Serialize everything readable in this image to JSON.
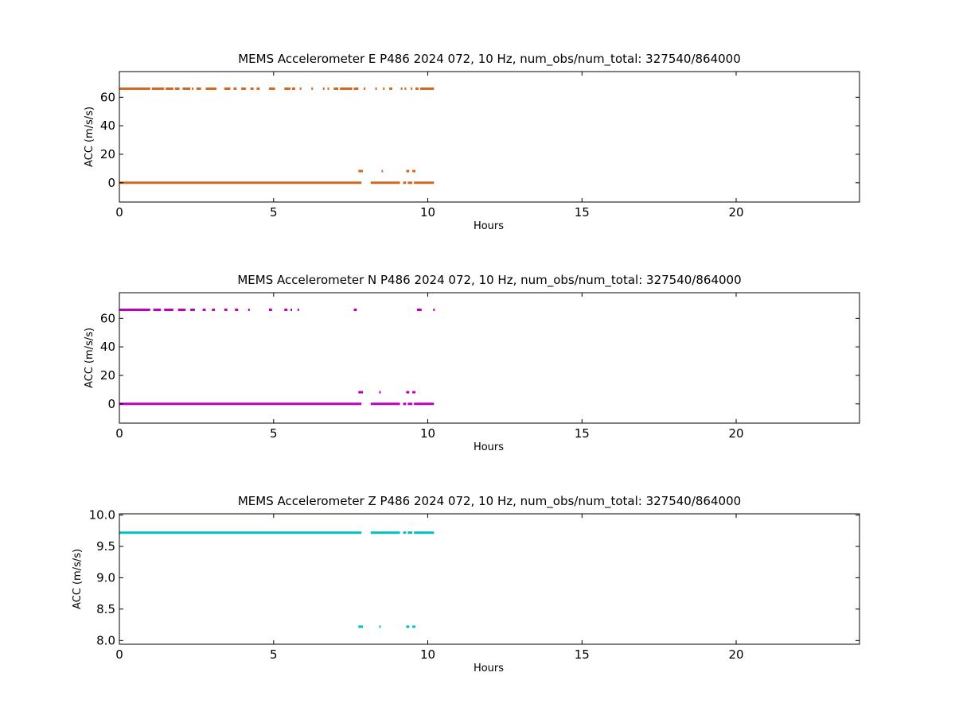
{
  "chart_data": [
    {
      "type": "scatter",
      "title": "MEMS Accelerometer E P486 2024 072, 10 Hz, num_obs/num_total: 327540/864000",
      "xlabel": "Hours",
      "ylabel": "ACC (m/s/s)",
      "xlim": [
        0,
        24
      ],
      "ylim": [
        -13.5,
        78
      ],
      "xticks": [
        0,
        5,
        10,
        15,
        20
      ],
      "yticks": [
        0,
        20,
        40,
        60
      ],
      "ytick_labels": [
        "0",
        "20",
        "40",
        "60"
      ],
      "color": "#d2691e",
      "series": [
        {
          "level": 0,
          "segments": [
            [
              0.0,
              7.85
            ],
            [
              8.15,
              9.1
            ],
            [
              9.2,
              9.3
            ],
            [
              9.35,
              9.5
            ],
            [
              9.55,
              10.2
            ]
          ]
        },
        {
          "level": 66,
          "segments": [
            [
              0.0,
              1.0
            ],
            [
              1.05,
              1.45
            ],
            [
              1.5,
              1.75
            ],
            [
              1.8,
              1.95
            ],
            [
              2.05,
              2.3
            ],
            [
              2.35,
              2.4
            ],
            [
              2.5,
              2.65
            ],
            [
              2.8,
              3.15
            ],
            [
              3.4,
              3.6
            ],
            [
              3.7,
              3.8
            ],
            [
              3.95,
              4.1
            ],
            [
              4.25,
              4.35
            ],
            [
              4.45,
              4.55
            ],
            [
              4.85,
              5.05
            ],
            [
              5.35,
              5.55
            ],
            [
              5.6,
              5.7
            ],
            [
              5.85,
              5.9
            ],
            [
              6.6,
              6.65
            ],
            [
              6.75,
              6.8
            ],
            [
              6.95,
              7.1
            ],
            [
              7.15,
              7.55
            ],
            [
              7.6,
              7.75
            ],
            [
              8.3,
              8.35
            ],
            [
              8.55,
              8.6
            ],
            [
              8.75,
              8.85
            ],
            [
              9.25,
              9.3
            ],
            [
              9.45,
              9.5
            ],
            [
              9.6,
              9.7
            ],
            [
              9.75,
              10.2
            ]
          ]
        },
        {
          "level": 8.2,
          "segments": [
            [
              7.75,
              7.9
            ],
            [
              8.5,
              8.55
            ],
            [
              9.3,
              9.4
            ],
            [
              9.5,
              9.6
            ]
          ]
        }
      ],
      "sparse_points": [
        [
          6.25,
          66
        ],
        [
          7.95,
          66
        ],
        [
          9.15,
          66
        ]
      ]
    },
    {
      "type": "scatter",
      "title": "MEMS Accelerometer N P486 2024 072, 10 Hz, num_obs/num_total: 327540/864000",
      "xlabel": "Hours",
      "ylabel": "ACC (m/s/s)",
      "xlim": [
        0,
        24
      ],
      "ylim": [
        -13.5,
        78
      ],
      "xticks": [
        0,
        5,
        10,
        15,
        20
      ],
      "yticks": [
        0,
        20,
        40,
        60
      ],
      "ytick_labels": [
        "0",
        "20",
        "40",
        "60"
      ],
      "color": "#bf00bf",
      "series": [
        {
          "level": 0,
          "segments": [
            [
              0.0,
              7.85
            ],
            [
              8.15,
              9.1
            ],
            [
              9.2,
              9.3
            ],
            [
              9.35,
              9.5
            ],
            [
              9.55,
              10.2
            ]
          ]
        },
        {
          "level": 66,
          "segments": [
            [
              0.0,
              1.0
            ],
            [
              1.1,
              1.35
            ],
            [
              1.45,
              1.75
            ],
            [
              1.9,
              2.15
            ],
            [
              2.3,
              2.45
            ],
            [
              2.7,
              2.8
            ],
            [
              3.0,
              3.1
            ],
            [
              3.4,
              3.5
            ],
            [
              3.75,
              3.85
            ],
            [
              4.85,
              4.95
            ],
            [
              5.35,
              5.45
            ],
            [
              5.55,
              5.6
            ],
            [
              7.6,
              7.7
            ],
            [
              9.65,
              9.8
            ]
          ]
        },
        {
          "level": 8.2,
          "segments": [
            [
              7.75,
              7.9
            ],
            [
              9.3,
              9.4
            ],
            [
              9.5,
              9.6
            ]
          ]
        }
      ],
      "sparse_points": [
        [
          4.2,
          66
        ],
        [
          5.8,
          66
        ],
        [
          10.2,
          66
        ],
        [
          8.45,
          8.2
        ]
      ]
    },
    {
      "type": "scatter",
      "title": "MEMS Accelerometer Z P486 2024 072, 10 Hz, num_obs/num_total: 327540/864000",
      "xlabel": "Hours",
      "ylabel": "ACC (m/s/s)",
      "xlim": [
        0,
        24
      ],
      "ylim": [
        7.94,
        10.02
      ],
      "xticks": [
        0,
        5,
        10,
        15,
        20
      ],
      "yticks": [
        8.0,
        8.5,
        9.0,
        9.5,
        10.0
      ],
      "ytick_labels": [
        "8.0",
        "8.5",
        "9.0",
        "9.5",
        "10.0"
      ],
      "color": "#00bfbf",
      "series": [
        {
          "level": 9.72,
          "segments": [
            [
              0.0,
              7.85
            ],
            [
              8.15,
              9.1
            ],
            [
              9.2,
              9.3
            ],
            [
              9.35,
              9.5
            ],
            [
              9.55,
              10.2
            ]
          ]
        },
        {
          "level": 8.22,
          "segments": [
            [
              7.75,
              7.9
            ],
            [
              9.3,
              9.4
            ],
            [
              9.5,
              9.6
            ]
          ]
        }
      ],
      "sparse_points": [
        [
          8.45,
          8.22
        ]
      ]
    }
  ]
}
